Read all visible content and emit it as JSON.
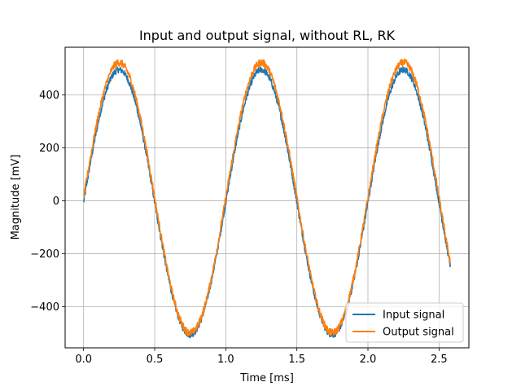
{
  "chart_data": {
    "type": "line",
    "title": "Input and output signal, without RL, RK",
    "xlabel": "Time [ms]",
    "ylabel": "Magnitude [mV]",
    "xlim": [
      -0.13,
      2.71
    ],
    "ylim": [
      -555,
      580
    ],
    "xticks": [
      0.0,
      0.5,
      1.0,
      1.5,
      2.0,
      2.5
    ],
    "xtick_labels": [
      "0.0",
      "0.5",
      "1.0",
      "1.5",
      "2.0",
      "2.5"
    ],
    "yticks": [
      -400,
      -200,
      0,
      200,
      400
    ],
    "ytick_labels": [
      "−400",
      "−200",
      "0",
      "200",
      "400"
    ],
    "grid": true,
    "legend_position": "lower-right",
    "signal": {
      "frequency_khz": 1.0,
      "duration_ms": 2.58
    },
    "series": [
      {
        "name": "Input signal",
        "color": "#1f77b4",
        "amplitude": 500,
        "offset": -5,
        "noise": 12
      },
      {
        "name": "Output signal",
        "color": "#ff7f0e",
        "amplitude": 510,
        "offset": 12,
        "noise": 14
      }
    ]
  }
}
